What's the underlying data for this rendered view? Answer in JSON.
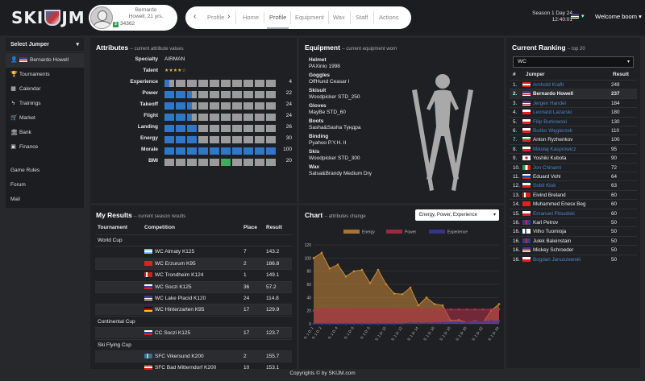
{
  "header": {
    "logo": "SKIJM",
    "profile": {
      "name_line1": "Bernardo",
      "name_line2": "Howell, 21 yrs.",
      "money": "34362"
    },
    "nav": {
      "items": [
        "Profile",
        "Home",
        "Profile",
        "Equipment",
        "Wax",
        "Staff",
        "Actions"
      ],
      "active": "Profile"
    },
    "season": {
      "line1": "Season 1 Day 24",
      "line2": "12:40:01"
    },
    "welcome": "Welcome boom"
  },
  "sidebar": {
    "select_label": "Select Jumper",
    "items": [
      {
        "label": "Bernardo Howell",
        "icon": "person-icon",
        "flag": "us"
      },
      {
        "label": "Tournaments",
        "icon": "trophy-icon"
      },
      {
        "label": "Calendar",
        "icon": "calendar-icon"
      },
      {
        "label": "Trainings",
        "icon": "bolt-icon"
      },
      {
        "label": "Market",
        "icon": "cart-icon"
      },
      {
        "label": "Bank",
        "icon": "bank-icon"
      },
      {
        "label": "Finance",
        "icon": "money-icon"
      }
    ],
    "links": [
      "Game Rules",
      "Forum",
      "Mail"
    ]
  },
  "attributes": {
    "title": "Attributes",
    "subtitle": "current attribute values",
    "specialty_label": "Specialty",
    "specialty": "AIRMAN",
    "talent_label": "Talent",
    "talent_stars": "★★★★☆",
    "talent_rating": 4,
    "rows": [
      {
        "label": "Experience",
        "value": 4,
        "filled": 0.5
      },
      {
        "label": "Power",
        "value": 22,
        "filled": 2.5
      },
      {
        "label": "Takeoff",
        "value": 24,
        "filled": 2.5
      },
      {
        "label": "Flight",
        "value": 24,
        "filled": 2.5
      },
      {
        "label": "Landing",
        "value": 26,
        "filled": 3
      },
      {
        "label": "Energy",
        "value": 30,
        "filled": 3
      },
      {
        "label": "Morale",
        "value": 100,
        "filled": 10
      },
      {
        "label": "BMI",
        "value": 20,
        "filled": 0,
        "green_index": 5
      }
    ]
  },
  "equipment": {
    "title": "Equipment",
    "subtitle": "current equipment worn",
    "items": [
      {
        "type": "Helmet",
        "name": "PAXinio 1998"
      },
      {
        "type": "Goggles",
        "name": "OffHund Ceasar I"
      },
      {
        "type": "Skisuit",
        "name": "Woodpicker STD_250"
      },
      {
        "type": "Gloves",
        "name": "MayBe STD_60"
      },
      {
        "type": "Boots",
        "name": "Sasha&Sasha Тундра"
      },
      {
        "type": "Binding",
        "name": "Pyahoo P.Y.H. II"
      },
      {
        "type": "Skis",
        "name": "Woodpicker STD_300"
      },
      {
        "type": "Wax",
        "name": "Salsa&Brandy Medium Dry"
      }
    ]
  },
  "ranking": {
    "title": "Current Ranking",
    "subtitle": "top 20",
    "select": "WC",
    "headers": [
      "#",
      "Jumper",
      "Result"
    ],
    "rows": [
      {
        "pos": "1.",
        "flag": "at",
        "name": "Arnhold Krafti",
        "result": "249"
      },
      {
        "pos": "2.",
        "flag": "us",
        "name": "Bernardo Howell",
        "result": "237",
        "own": true
      },
      {
        "pos": "3.",
        "flag": "us",
        "name": "Jergen Handel",
        "result": "184"
      },
      {
        "pos": "4.",
        "flag": "pl",
        "name": "Leonard Lazarski",
        "result": "180"
      },
      {
        "pos": "5.",
        "flag": "pl",
        "name": "Filip Burkowski",
        "result": "130"
      },
      {
        "pos": "6.",
        "flag": "pl",
        "name": "Bożko Węgierzek",
        "result": "110"
      },
      {
        "pos": "7.",
        "flag": "bg",
        "name": "Anton Ryzhenkov",
        "result": "100",
        "white": true
      },
      {
        "pos": "8.",
        "flag": "pl",
        "name": "Mikołaj Kasprowicz",
        "result": "95"
      },
      {
        "pos": "9.",
        "flag": "jp",
        "name": "Yoshiki Kubota",
        "result": "90",
        "white": true
      },
      {
        "pos": "10.",
        "flag": "it",
        "name": "Jon Chinami",
        "result": "72"
      },
      {
        "pos": "11.",
        "flag": "ru",
        "name": "Eduard Vohl",
        "result": "64",
        "white": true
      },
      {
        "pos": "12.",
        "flag": "pl",
        "name": "Sobit Kluk",
        "result": "63"
      },
      {
        "pos": "13.",
        "flag": "no",
        "name": "Eivind Breland",
        "result": "60",
        "white": true
      },
      {
        "pos": "14.",
        "flag": "tr",
        "name": "Muhammed Enesx Beg",
        "result": "60",
        "white": true
      },
      {
        "pos": "15.",
        "flag": "pl",
        "name": "Emanuel Pitsudski",
        "result": "60"
      },
      {
        "pos": "16.",
        "flag": "gb",
        "name": "Karl Petrov",
        "result": "50",
        "white": true
      },
      {
        "pos": "16.",
        "flag": "fi",
        "name": "Vilho Tuomioja",
        "result": "50",
        "white": true
      },
      {
        "pos": "16.",
        "flag": "gb",
        "name": "Julek Baleinstain",
        "result": "50",
        "white": true
      },
      {
        "pos": "16.",
        "flag": "us",
        "name": "Mickey Schroeder",
        "result": "50",
        "white": true
      },
      {
        "pos": "16.",
        "flag": "pl",
        "name": "Bogdan Januszewski",
        "result": "50"
      }
    ]
  },
  "results": {
    "title": "My Results",
    "subtitle": "current season results",
    "headers": [
      "Tournament",
      "Competition",
      "Place",
      "Result"
    ],
    "rows": [
      {
        "tournament": "World Cup"
      },
      {
        "flag": "ar",
        "competition": "WC Almaty K125",
        "place": "7",
        "result": "143.2"
      },
      {
        "flag": "tr",
        "competition": "WC Erzurum K95",
        "place": "2",
        "result": "186.8"
      },
      {
        "flag": "no",
        "competition": "WC Trondheim K124",
        "place": "1",
        "result": "149.1"
      },
      {
        "flag": "ru",
        "competition": "WC Soczi K125",
        "place": "36",
        "result": "57.2"
      },
      {
        "flag": "us",
        "competition": "WC Lake Placid K120",
        "place": "24",
        "result": "114.8"
      },
      {
        "flag": "de",
        "competition": "WC Hinterzarten K95",
        "place": "17",
        "result": "129.9"
      },
      {
        "tournament": "Continental Cup"
      },
      {
        "flag": "ru",
        "competition": "CC Soczi K125",
        "place": "17",
        "result": "123.7"
      },
      {
        "tournament": "Ski Flying Cup"
      },
      {
        "flag": "se",
        "competition": "SFC Vikersund K200",
        "place": "2",
        "result": "155.7"
      },
      {
        "flag": "at",
        "competition": "SFC Bad Mitterndorf K200",
        "place": "10",
        "result": "153.1"
      }
    ]
  },
  "chart": {
    "title": "Chart",
    "subtitle": "attributes change",
    "select": "Energy, Power, Experience"
  },
  "chart_data": {
    "type": "area",
    "x": [
      "S: 1 D: 1",
      "S: 1 D: 2",
      "S: 1 D: 3",
      "S: 1 D: 4",
      "S: 1 D: 5",
      "S: 1 D: 6",
      "S: 1 D: 7",
      "S: 1 D: 8",
      "S: 1 D: 9",
      "S: 1 D: 10",
      "S: 1 D: 11",
      "S: 1 D: 12",
      "S: 1 D: 13",
      "S: 1 D: 14",
      "S: 1 D: 15",
      "S: 1 D: 16",
      "S: 1 D: 17",
      "S: 1 D: 18",
      "S: 1 D: 19",
      "S: 1 D: 20",
      "S: 1 D: 21",
      "S: 1 D: 22",
      "S: 1 D: 23",
      "S: 1 D: 24"
    ],
    "tick_labels": [
      "S: 1 D: 1",
      "S: 1 D: 2",
      "S: 1 D: 4",
      "S: 1 D: 6",
      "S: 1 D: 8",
      "S: 1 D: 10",
      "S: 1 D: 12",
      "S: 1 D: 14",
      "S: 1 D: 16",
      "S: 1 D: 18",
      "S: 1 D: 20",
      "S: 1 D: 22",
      "S: 1 D: 24"
    ],
    "series": [
      {
        "name": "Energy",
        "color": "#c8893a",
        "values": [
          100,
          108,
          84,
          90,
          72,
          80,
          82,
          62,
          82,
          60,
          46,
          45,
          55,
          28,
          40,
          30,
          28,
          5,
          6,
          2,
          4,
          2,
          20,
          30
        ]
      },
      {
        "name": "Power",
        "color": "#b5304a",
        "values": [
          20,
          22,
          22,
          22,
          22,
          22,
          22,
          22,
          22,
          22,
          22,
          22,
          22,
          22,
          22,
          22,
          22,
          22,
          22,
          22,
          22,
          22,
          22,
          22
        ]
      },
      {
        "name": "Experience",
        "color": "#3a3aa0",
        "values": [
          0,
          0,
          0,
          0,
          0,
          0,
          0,
          0,
          0,
          0,
          0,
          0,
          1,
          1,
          1,
          1,
          2,
          2,
          2,
          2,
          3,
          3,
          4,
          4
        ]
      }
    ],
    "yticks": [
      0,
      20,
      40,
      60,
      80,
      100,
      120
    ],
    "ylim": [
      0,
      120
    ],
    "legend": "top"
  },
  "footer": {
    "text": "Copyrights © by SKIJM.com"
  }
}
